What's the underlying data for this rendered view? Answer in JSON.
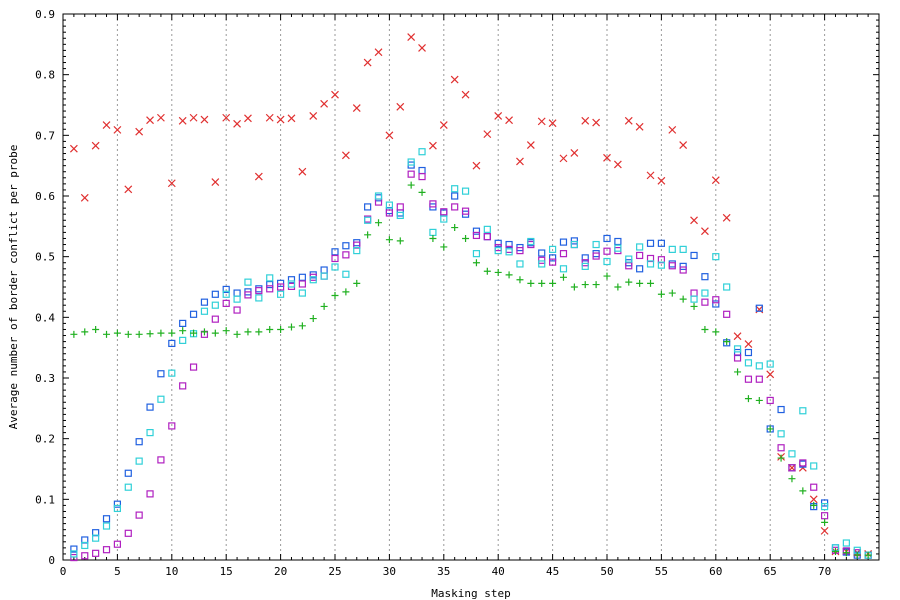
{
  "chart_data": {
    "type": "scatter",
    "xlabel": "Masking step",
    "ylabel": "Average number of border conflict per probe",
    "xlim": [
      0,
      75
    ],
    "ylim": [
      0,
      0.9
    ],
    "x_ticks": [
      0,
      5,
      10,
      15,
      20,
      25,
      30,
      35,
      40,
      45,
      50,
      55,
      60,
      65,
      70
    ],
    "y_ticks": [
      0,
      0.1,
      0.2,
      0.3,
      0.4,
      0.5,
      0.6,
      0.7,
      0.8,
      0.9
    ],
    "y_tick_labels": [
      "0",
      "0.1",
      "0.2",
      "0.3",
      "0.4",
      "0.5",
      "0.6",
      "0.7",
      "0.8",
      "0.9"
    ],
    "grid": "vertical dotted lines at x ticks",
    "legend": "none",
    "series": [
      {
        "marker": "x",
        "color": "#e03030",
        "x": [
          1,
          2,
          3,
          4,
          5,
          6,
          7,
          8,
          9,
          10,
          11,
          12,
          13,
          14,
          15,
          16,
          17,
          18,
          19,
          20,
          21,
          22,
          23,
          24,
          25,
          26,
          27,
          28,
          29,
          30,
          31,
          32,
          33,
          34,
          35,
          36,
          37,
          38,
          39,
          40,
          41,
          42,
          43,
          44,
          45,
          46,
          47,
          48,
          49,
          50,
          51,
          52,
          53,
          54,
          55,
          56,
          57,
          58,
          59,
          60,
          61,
          62,
          63,
          64,
          65,
          66,
          67,
          68,
          69,
          70,
          71,
          72,
          73,
          74
        ],
        "y": [
          0.678,
          0.597,
          0.683,
          0.717,
          0.709,
          0.611,
          0.706,
          0.725,
          0.729,
          0.621,
          0.724,
          0.729,
          0.726,
          0.623,
          0.729,
          0.719,
          0.728,
          0.632,
          0.729,
          0.726,
          0.728,
          0.64,
          0.732,
          0.752,
          0.767,
          0.667,
          0.745,
          0.82,
          0.837,
          0.7,
          0.747,
          0.862,
          0.844,
          0.683,
          0.717,
          0.792,
          0.767,
          0.65,
          0.702,
          0.732,
          0.725,
          0.657,
          0.684,
          0.723,
          0.72,
          0.662,
          0.671,
          0.724,
          0.721,
          0.663,
          0.652,
          0.724,
          0.714,
          0.634,
          0.625,
          0.709,
          0.684,
          0.56,
          0.542,
          0.626,
          0.564,
          0.369,
          0.356,
          0.413,
          0.306,
          0.17,
          0.152,
          0.152,
          0.1,
          0.048,
          0.014,
          0.014,
          0.012,
          0.01
        ]
      },
      {
        "marker": "square",
        "color": "#2060e0",
        "x": [
          1,
          2,
          3,
          4,
          5,
          6,
          7,
          8,
          9,
          10,
          11,
          12,
          13,
          14,
          15,
          16,
          17,
          18,
          19,
          20,
          21,
          22,
          23,
          24,
          25,
          26,
          27,
          28,
          29,
          30,
          31,
          32,
          33,
          34,
          35,
          36,
          37,
          38,
          39,
          40,
          41,
          42,
          43,
          44,
          45,
          46,
          47,
          48,
          49,
          50,
          51,
          52,
          53,
          54,
          55,
          56,
          57,
          58,
          59,
          60,
          61,
          62,
          63,
          64,
          65,
          66,
          67,
          68,
          69,
          70,
          71,
          72,
          73,
          74
        ],
        "y": [
          0.018,
          0.033,
          0.045,
          0.068,
          0.092,
          0.143,
          0.195,
          0.252,
          0.307,
          0.357,
          0.39,
          0.405,
          0.425,
          0.438,
          0.446,
          0.44,
          0.442,
          0.447,
          0.454,
          0.456,
          0.462,
          0.466,
          0.47,
          0.478,
          0.508,
          0.518,
          0.523,
          0.582,
          0.597,
          0.576,
          0.572,
          0.651,
          0.642,
          0.582,
          0.572,
          0.6,
          0.57,
          0.542,
          0.533,
          0.522,
          0.52,
          0.515,
          0.523,
          0.506,
          0.498,
          0.524,
          0.526,
          0.498,
          0.505,
          0.53,
          0.525,
          0.49,
          0.48,
          0.522,
          0.522,
          0.488,
          0.484,
          0.502,
          0.467,
          0.422,
          0.358,
          0.342,
          0.342,
          0.415,
          0.216,
          0.248,
          0.152,
          0.158,
          0.088,
          0.094,
          0.02,
          0.013,
          0.008,
          0.008
        ]
      },
      {
        "marker": "square",
        "color": "#b020c0",
        "x": [
          1,
          2,
          3,
          4,
          5,
          6,
          7,
          8,
          9,
          10,
          11,
          12,
          13,
          14,
          15,
          16,
          17,
          18,
          19,
          20,
          21,
          22,
          23,
          24,
          25,
          26,
          27,
          28,
          29,
          30,
          31,
          32,
          33,
          34,
          35,
          36,
          37,
          38,
          39,
          40,
          41,
          42,
          43,
          44,
          45,
          46,
          47,
          48,
          49,
          50,
          51,
          52,
          53,
          54,
          55,
          56,
          57,
          58,
          59,
          60,
          61,
          62,
          63,
          64,
          65,
          66,
          67,
          68,
          69,
          70,
          71,
          72,
          73,
          74
        ],
        "y": [
          0.004,
          0.007,
          0.011,
          0.017,
          0.026,
          0.044,
          0.074,
          0.109,
          0.165,
          0.221,
          0.287,
          0.318,
          0.372,
          0.397,
          0.423,
          0.412,
          0.437,
          0.444,
          0.447,
          0.45,
          0.451,
          0.455,
          0.466,
          0.468,
          0.497,
          0.503,
          0.519,
          0.562,
          0.59,
          0.572,
          0.582,
          0.636,
          0.632,
          0.587,
          0.574,
          0.582,
          0.575,
          0.535,
          0.533,
          0.515,
          0.512,
          0.51,
          0.52,
          0.494,
          0.491,
          0.505,
          0.52,
          0.49,
          0.501,
          0.509,
          0.51,
          0.485,
          0.502,
          0.497,
          0.495,
          0.485,
          0.478,
          0.44,
          0.425,
          0.429,
          0.405,
          0.333,
          0.298,
          0.298,
          0.263,
          0.185,
          0.152,
          0.16,
          0.12,
          0.073,
          0.016,
          0.015,
          0.012,
          0.008
        ]
      },
      {
        "marker": "square",
        "color": "#30d0d8",
        "x": [
          1,
          2,
          3,
          4,
          5,
          6,
          7,
          8,
          9,
          10,
          11,
          12,
          13,
          14,
          15,
          16,
          17,
          18,
          19,
          20,
          21,
          22,
          23,
          24,
          25,
          26,
          27,
          28,
          29,
          30,
          31,
          32,
          33,
          34,
          35,
          36,
          37,
          38,
          39,
          40,
          41,
          42,
          43,
          44,
          45,
          46,
          47,
          48,
          49,
          50,
          51,
          52,
          53,
          54,
          55,
          56,
          57,
          58,
          59,
          60,
          61,
          62,
          63,
          64,
          65,
          66,
          67,
          68,
          69,
          70,
          71,
          72,
          73,
          74
        ],
        "y": [
          0.01,
          0.024,
          0.036,
          0.056,
          0.085,
          0.12,
          0.163,
          0.21,
          0.265,
          0.308,
          0.362,
          0.373,
          0.41,
          0.42,
          0.438,
          0.43,
          0.458,
          0.432,
          0.465,
          0.438,
          0.455,
          0.44,
          0.462,
          0.468,
          0.483,
          0.471,
          0.51,
          0.56,
          0.6,
          0.585,
          0.568,
          0.656,
          0.673,
          0.54,
          0.562,
          0.612,
          0.608,
          0.505,
          0.545,
          0.51,
          0.508,
          0.488,
          0.525,
          0.488,
          0.512,
          0.48,
          0.52,
          0.484,
          0.52,
          0.492,
          0.514,
          0.496,
          0.516,
          0.488,
          0.486,
          0.512,
          0.512,
          0.43,
          0.44,
          0.5,
          0.45,
          0.348,
          0.325,
          0.32,
          0.323,
          0.208,
          0.175,
          0.246,
          0.155,
          0.088,
          0.02,
          0.028,
          0.016,
          0.008
        ]
      },
      {
        "marker": "+",
        "color": "#20b020",
        "x": [
          1,
          2,
          3,
          4,
          5,
          6,
          7,
          8,
          9,
          10,
          11,
          12,
          13,
          14,
          15,
          16,
          17,
          18,
          19,
          20,
          21,
          22,
          23,
          24,
          25,
          26,
          27,
          28,
          29,
          30,
          31,
          32,
          33,
          34,
          35,
          36,
          37,
          38,
          39,
          40,
          41,
          42,
          43,
          44,
          45,
          46,
          47,
          48,
          49,
          50,
          51,
          52,
          53,
          54,
          55,
          56,
          57,
          58,
          59,
          60,
          61,
          62,
          63,
          64,
          65,
          66,
          67,
          68,
          69,
          70,
          71,
          72,
          73,
          74
        ],
        "y": [
          0.372,
          0.376,
          0.38,
          0.372,
          0.374,
          0.372,
          0.372,
          0.373,
          0.374,
          0.374,
          0.378,
          0.374,
          0.376,
          0.374,
          0.378,
          0.372,
          0.376,
          0.376,
          0.38,
          0.38,
          0.384,
          0.386,
          0.398,
          0.418,
          0.436,
          0.442,
          0.456,
          0.536,
          0.556,
          0.528,
          0.526,
          0.618,
          0.606,
          0.53,
          0.516,
          0.548,
          0.53,
          0.49,
          0.476,
          0.474,
          0.47,
          0.462,
          0.456,
          0.456,
          0.456,
          0.466,
          0.45,
          0.454,
          0.454,
          0.468,
          0.45,
          0.458,
          0.456,
          0.456,
          0.438,
          0.44,
          0.43,
          0.418,
          0.38,
          0.376,
          0.36,
          0.31,
          0.266,
          0.263,
          0.216,
          0.168,
          0.134,
          0.114,
          0.09,
          0.062,
          0.014,
          0.012,
          0.008,
          0.008
        ]
      }
    ]
  }
}
